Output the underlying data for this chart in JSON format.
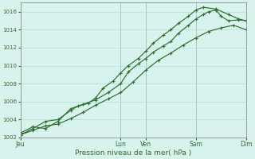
{
  "title": "",
  "xlabel": "Pression niveau de la mer( hPa )",
  "ylabel": "",
  "background_color": "#d8f2ee",
  "grid_color": "#b8ddd8",
  "line_color": "#2d6e2d",
  "vline_color": "#888888",
  "ylim": [
    1002,
    1017
  ],
  "yticks": [
    1002,
    1004,
    1006,
    1008,
    1010,
    1012,
    1014,
    1016
  ],
  "xlim": [
    0,
    9
  ],
  "day_labels": [
    "Jeu",
    "Lun",
    "Ven",
    "Sam",
    "Dim"
  ],
  "day_positions": [
    0,
    4,
    5,
    7,
    9
  ],
  "series": [
    {
      "x": [
        0,
        0.5,
        1.0,
        1.5,
        2.0,
        2.5,
        3.0,
        3.5,
        4.0,
        4.5,
        5.0,
        5.5,
        6.0,
        6.5,
        7.0,
        7.5,
        8.0,
        8.5,
        9.0
      ],
      "y": [
        1002.3,
        1002.8,
        1003.3,
        1003.5,
        1004.1,
        1004.8,
        1005.6,
        1006.3,
        1007.0,
        1008.2,
        1009.5,
        1010.6,
        1011.4,
        1012.3,
        1013.1,
        1013.8,
        1014.2,
        1014.5,
        1014.0
      ]
    },
    {
      "x": [
        0,
        0.5,
        1.0,
        1.5,
        2.0,
        2.5,
        3.0,
        3.5,
        4.0,
        4.3,
        4.7,
        5.0,
        5.3,
        5.7,
        6.0,
        6.3,
        6.7,
        7.0,
        7.3,
        7.5,
        7.8,
        8.0,
        8.3,
        8.7,
        9.0
      ],
      "y": [
        1002.5,
        1003.2,
        1003.0,
        1003.8,
        1005.2,
        1005.7,
        1006.2,
        1007.0,
        1008.0,
        1009.3,
        1010.2,
        1010.8,
        1011.5,
        1012.2,
        1012.7,
        1013.6,
        1014.5,
        1015.2,
        1015.7,
        1016.0,
        1016.2,
        1015.5,
        1015.0,
        1015.1,
        1015.0
      ]
    },
    {
      "x": [
        0,
        0.5,
        1.0,
        1.5,
        2.0,
        2.3,
        2.7,
        3.0,
        3.3,
        3.7,
        4.0,
        4.3,
        4.7,
        5.0,
        5.3,
        5.7,
        6.0,
        6.3,
        6.7,
        7.0,
        7.3,
        7.8,
        8.3,
        8.7,
        9.0
      ],
      "y": [
        1002.3,
        1003.0,
        1003.8,
        1004.0,
        1005.0,
        1005.5,
        1005.8,
        1006.4,
        1007.5,
        1008.3,
        1009.2,
        1010.0,
        1010.8,
        1011.6,
        1012.5,
        1013.4,
        1014.0,
        1014.7,
        1015.5,
        1016.2,
        1016.5,
        1016.3,
        1015.7,
        1015.2,
        1015.0
      ]
    }
  ]
}
